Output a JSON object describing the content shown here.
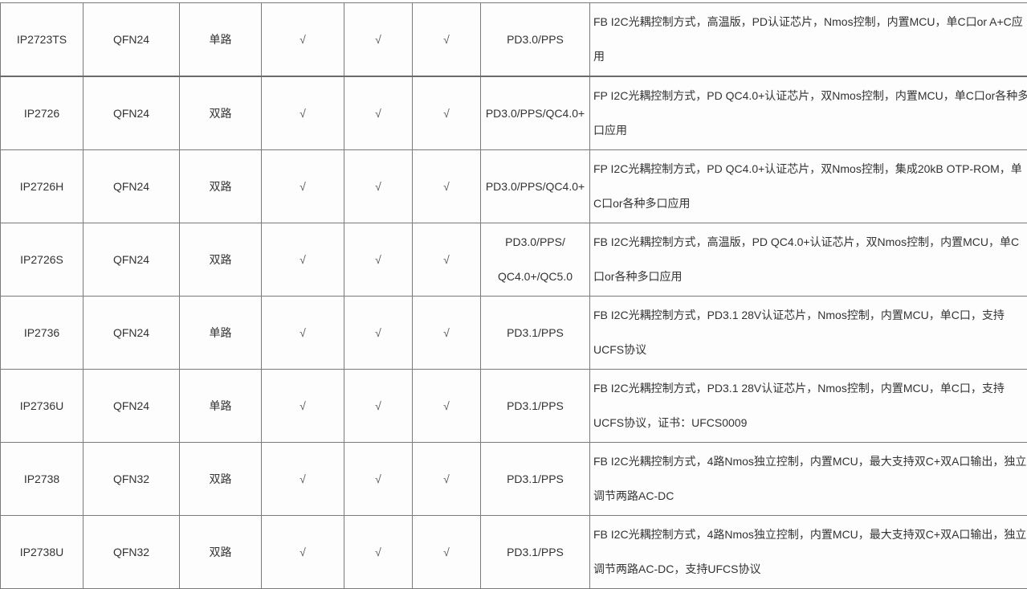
{
  "rows": [
    {
      "model": "IP2723TS",
      "package": "QFN24",
      "channels": "单路",
      "c1": "√",
      "c2": "√",
      "c3": "√",
      "protocol": "PD3.0/PPS",
      "desc": "FB I2C光耦控制方式，高温版，PD认证芯片，Nmos控制，内置MCU，单C口or A+C应用"
    },
    {
      "model": "IP2726",
      "package": "QFN24",
      "channels": "双路",
      "c1": "√",
      "c2": "√",
      "c3": "√",
      "protocol": "PD3.0/PPS/QC4.0+",
      "desc": "FP I2C光耦控制方式，PD QC4.0+认证芯片，双Nmos控制，内置MCU，单C口or各种多口应用"
    },
    {
      "model": "IP2726H",
      "package": "QFN24",
      "channels": "双路",
      "c1": "√",
      "c2": "√",
      "c3": "√",
      "protocol": "PD3.0/PPS/QC4.0+",
      "desc": "FP I2C光耦控制方式，PD QC4.0+认证芯片，双Nmos控制，集成20kB OTP-ROM，单C口or各种多口应用"
    },
    {
      "model": "IP2726S",
      "package": "QFN24",
      "channels": "双路",
      "c1": "√",
      "c2": "√",
      "c3": "√",
      "protocol": "PD3.0/PPS/ QC4.0+/QC5.0",
      "desc": "FB I2C光耦控制方式，高温版，PD QC4.0+认证芯片，双Nmos控制，内置MCU，单C口or各种多口应用"
    },
    {
      "model": "IP2736",
      "package": "QFN24",
      "channels": "单路",
      "c1": "√",
      "c2": "√",
      "c3": "√",
      "protocol": "PD3.1/PPS",
      "desc": "FB I2C光耦控制方式，PD3.1 28V认证芯片，Nmos控制，内置MCU，单C口，支持UCFS协议"
    },
    {
      "model": "IP2736U",
      "package": "QFN24",
      "channels": "单路",
      "c1": "√",
      "c2": "√",
      "c3": "√",
      "protocol": "PD3.1/PPS",
      "desc": "FB I2C光耦控制方式，PD3.1 28V认证芯片，Nmos控制，内置MCU，单C口，支持UCFS协议，证书：UFCS0009"
    },
    {
      "model": "IP2738",
      "package": "QFN32",
      "channels": "双路",
      "c1": "√",
      "c2": "√",
      "c3": "√",
      "protocol": "PD3.1/PPS",
      "desc": "FB I2C光耦控制方式，4路Nmos独立控制，内置MCU，最大支持双C+双A口输出，独立调节两路AC-DC"
    },
    {
      "model": "IP2738U",
      "package": "QFN32",
      "channels": "双路",
      "c1": "√",
      "c2": "√",
      "c3": "√",
      "protocol": "PD3.1/PPS",
      "desc": "FB I2C光耦控制方式，4路Nmos独立控制，内置MCU，最大支持双C+双A口输出，独立调节两路AC-DC，支持UFCS协议"
    }
  ]
}
